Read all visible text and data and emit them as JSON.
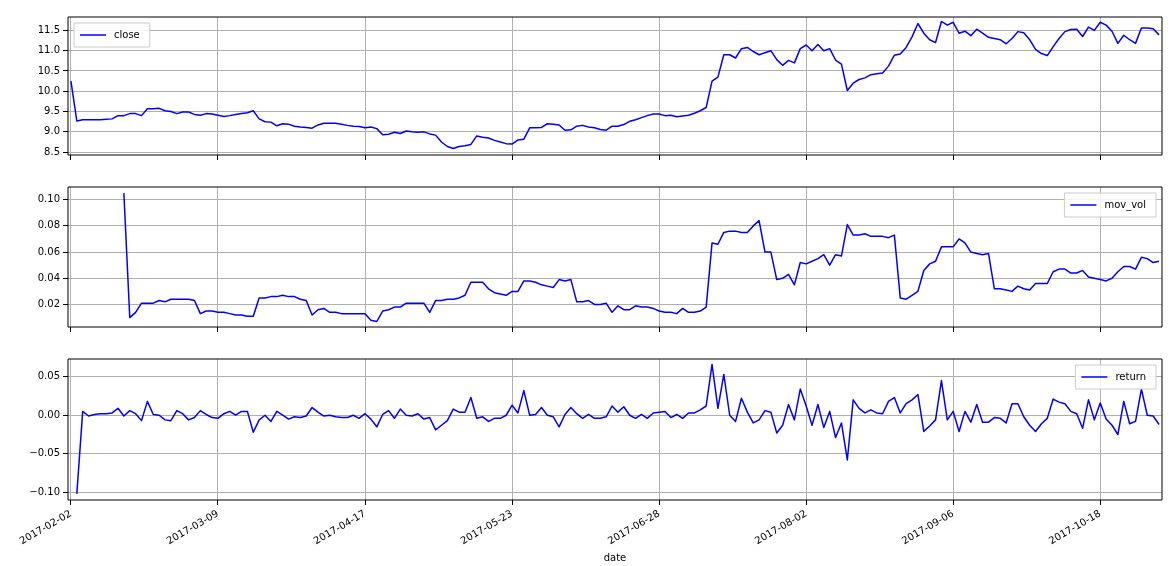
{
  "chart_data": [
    {
      "type": "line",
      "legend": "top left",
      "grid": true,
      "tick_labels": "y",
      "ylim": [
        8.43,
        11.83
      ],
      "categories": [
        "2017-02-02",
        null,
        null,
        null,
        null,
        null,
        null,
        null,
        null,
        null,
        null,
        null,
        null,
        null,
        null,
        null,
        null,
        null,
        null,
        null,
        null,
        null,
        null,
        null,
        null,
        "2017-03-09",
        null,
        null,
        null,
        null,
        null,
        null,
        null,
        null,
        null,
        null,
        null,
        null,
        null,
        null,
        null,
        null,
        null,
        null,
        null,
        null,
        null,
        null,
        null,
        null,
        "2017-04-17",
        null,
        null,
        null,
        null,
        null,
        null,
        null,
        null,
        null,
        null,
        null,
        null,
        null,
        null,
        null,
        null,
        null,
        null,
        null,
        null,
        null,
        null,
        null,
        null,
        "2017-05-23",
        null,
        null,
        null,
        null,
        null,
        null,
        null,
        null,
        null,
        null,
        null,
        null,
        null,
        null,
        null,
        null,
        null,
        null,
        null,
        null,
        null,
        null,
        null,
        null,
        "2017-06-28",
        null,
        null,
        null,
        null,
        null,
        null,
        null,
        null,
        null,
        null,
        null,
        null,
        null,
        null,
        null,
        null,
        null,
        null,
        null,
        null,
        null,
        null,
        null,
        null,
        "2017-08-02",
        null,
        null,
        null,
        null,
        null,
        null,
        null,
        null,
        null,
        null,
        null,
        null,
        null,
        null,
        null,
        null,
        null,
        null,
        null,
        null,
        null,
        null,
        null,
        null,
        "2017-09-06",
        null,
        null,
        null,
        null,
        null,
        null,
        null,
        null,
        null,
        null,
        null,
        null,
        null,
        null,
        null,
        null,
        null,
        null,
        null,
        null,
        null,
        null,
        null,
        null,
        "2017-10-18",
        null,
        null,
        null,
        null,
        null,
        null,
        null,
        null,
        null,
        null
      ],
      "yticks": [
        8.5,
        {
          "value": 9,
          "label": "9.0"
        },
        9.5,
        {
          "value": 10,
          "label": "10.0"
        },
        10.5,
        {
          "value": 11,
          "label": "11.0"
        },
        11.5
      ],
      "series": [
        {
          "name": "close",
          "color": "#0000ff",
          "values": [
            10.25,
            9.27,
            9.3,
            9.3,
            9.3,
            9.3,
            9.31,
            9.32,
            9.4,
            9.4,
            9.45,
            9.45,
            9.4,
            9.57,
            9.57,
            9.58,
            9.52,
            9.5,
            9.45,
            9.49,
            9.49,
            9.43,
            9.41,
            9.45,
            9.44,
            9.41,
            9.38,
            9.4,
            9.43,
            9.45,
            9.47,
            9.52,
            9.32,
            9.25,
            9.24,
            9.15,
            9.2,
            9.19,
            9.14,
            9.12,
            9.11,
            9.09,
            9.17,
            9.21,
            9.21,
            9.21,
            9.19,
            9.16,
            9.14,
            9.13,
            9.1,
            9.12,
            9.08,
            8.93,
            8.94,
            8.99,
            8.96,
            9.02,
            9.0,
            8.99,
            9.0,
            8.95,
            8.92,
            8.75,
            8.64,
            8.59,
            8.64,
            8.66,
            8.69,
            8.9,
            8.87,
            8.85,
            8.79,
            8.75,
            8.71,
            8.7,
            8.8,
            8.82,
            9.1,
            9.1,
            9.11,
            9.2,
            9.19,
            9.17,
            9.04,
            9.05,
            9.14,
            9.16,
            9.12,
            9.1,
            9.06,
            9.04,
            9.14,
            9.14,
            9.18,
            9.26,
            9.3,
            9.35,
            9.4,
            9.44,
            9.44,
            9.4,
            9.41,
            9.37,
            9.39,
            9.41,
            9.46,
            9.52,
            9.6,
            10.25,
            10.35,
            10.9,
            10.9,
            10.82,
            11.05,
            11.08,
            10.98,
            10.9,
            10.95,
            11.0,
            10.78,
            10.64,
            10.76,
            10.7,
            11.05,
            11.14,
            11.0,
            11.15,
            11.0,
            11.05,
            10.77,
            10.67,
            10.02,
            10.2,
            10.29,
            10.33,
            10.41,
            10.43,
            10.45,
            10.62,
            10.89,
            10.92,
            11.08,
            11.34,
            11.67,
            11.43,
            11.27,
            11.2,
            11.72,
            11.63,
            11.7,
            11.43,
            11.48,
            11.37,
            11.53,
            11.43,
            11.33,
            11.3,
            11.27,
            11.17,
            11.3,
            11.47,
            11.44,
            11.27,
            11.03,
            10.93,
            10.88,
            11.1,
            11.3,
            11.47,
            11.52,
            11.53,
            11.35,
            11.58,
            11.5,
            11.7,
            11.63,
            11.48,
            11.18,
            11.38,
            11.27,
            11.18,
            11.56,
            11.56,
            11.54,
            11.39
          ]
        }
      ]
    },
    {
      "type": "line",
      "legend": "top right",
      "grid": true,
      "tick_labels": "y",
      "ylim": [
        0.0028,
        0.1097
      ],
      "categories": [
        "2017-02-02",
        null,
        null,
        null,
        null,
        null,
        null,
        null,
        null,
        null,
        null,
        null,
        null,
        null,
        null,
        null,
        null,
        null,
        null,
        null,
        null,
        null,
        null,
        null,
        null,
        "2017-03-09",
        null,
        null,
        null,
        null,
        null,
        null,
        null,
        null,
        null,
        null,
        null,
        null,
        null,
        null,
        null,
        null,
        null,
        null,
        null,
        null,
        null,
        null,
        null,
        null,
        "2017-04-17",
        null,
        null,
        null,
        null,
        null,
        null,
        null,
        null,
        null,
        null,
        null,
        null,
        null,
        null,
        null,
        null,
        null,
        null,
        null,
        null,
        null,
        null,
        null,
        null,
        "2017-05-23",
        null,
        null,
        null,
        null,
        null,
        null,
        null,
        null,
        null,
        null,
        null,
        null,
        null,
        null,
        null,
        null,
        null,
        null,
        null,
        null,
        null,
        null,
        null,
        null,
        "2017-06-28",
        null,
        null,
        null,
        null,
        null,
        null,
        null,
        null,
        null,
        null,
        null,
        null,
        null,
        null,
        null,
        null,
        null,
        null,
        null,
        null,
        null,
        null,
        null,
        null,
        "2017-08-02",
        null,
        null,
        null,
        null,
        null,
        null,
        null,
        null,
        null,
        null,
        null,
        null,
        null,
        null,
        null,
        null,
        null,
        null,
        null,
        null,
        null,
        null,
        null,
        null,
        "2017-09-06",
        null,
        null,
        null,
        null,
        null,
        null,
        null,
        null,
        null,
        null,
        null,
        null,
        null,
        null,
        null,
        null,
        null,
        null,
        null,
        null,
        null,
        null,
        null,
        null,
        "2017-10-18",
        null,
        null,
        null,
        null,
        null,
        null,
        null,
        null,
        null,
        null
      ],
      "yticks": [
        0.02,
        0.04,
        0.06,
        0.08,
        {
          "value": 0.1,
          "label": "0.10"
        }
      ],
      "series": [
        {
          "name": "mov_vol",
          "color": "#0000ff",
          "values": [
            null,
            null,
            null,
            null,
            null,
            null,
            null,
            null,
            null,
            0.105,
            0.01,
            0.014,
            0.021,
            0.021,
            0.021,
            0.023,
            0.022,
            0.024,
            0.024,
            0.024,
            0.024,
            0.023,
            0.013,
            0.015,
            0.015,
            0.014,
            0.014,
            0.013,
            0.012,
            0.012,
            0.011,
            0.011,
            0.025,
            0.025,
            0.026,
            0.026,
            0.027,
            0.026,
            0.026,
            0.024,
            0.023,
            0.012,
            0.016,
            0.017,
            0.014,
            0.014,
            0.013,
            0.013,
            0.013,
            0.013,
            0.013,
            0.008,
            0.007,
            0.015,
            0.016,
            0.018,
            0.018,
            0.021,
            0.021,
            0.021,
            0.021,
            0.014,
            0.023,
            0.023,
            0.024,
            0.024,
            0.025,
            0.027,
            0.037,
            0.037,
            0.037,
            0.032,
            0.029,
            0.028,
            0.027,
            0.03,
            0.03,
            0.038,
            0.038,
            0.037,
            0.035,
            0.034,
            0.033,
            0.039,
            0.038,
            0.039,
            0.022,
            0.022,
            0.023,
            0.02,
            0.02,
            0.021,
            0.014,
            0.019,
            0.016,
            0.016,
            0.019,
            0.018,
            0.018,
            0.017,
            0.015,
            0.014,
            0.014,
            0.013,
            0.017,
            0.014,
            0.014,
            0.015,
            0.018,
            0.067,
            0.066,
            0.075,
            0.076,
            0.076,
            0.075,
            0.075,
            0.08,
            0.084,
            0.06,
            0.06,
            0.039,
            0.04,
            0.043,
            0.035,
            0.052,
            0.051,
            0.053,
            0.055,
            0.058,
            0.05,
            0.058,
            0.057,
            0.081,
            0.073,
            0.073,
            0.074,
            0.072,
            0.072,
            0.072,
            0.071,
            0.073,
            0.025,
            0.024,
            0.027,
            0.03,
            0.046,
            0.051,
            0.053,
            0.064,
            0.064,
            0.064,
            0.07,
            0.067,
            0.06,
            0.059,
            0.058,
            0.059,
            0.032,
            0.032,
            0.031,
            0.03,
            0.034,
            0.032,
            0.031,
            0.036,
            0.036,
            0.036,
            0.045,
            0.047,
            0.047,
            0.044,
            0.044,
            0.046,
            0.041,
            0.04,
            0.039,
            0.038,
            0.04,
            0.045,
            0.049,
            0.049,
            0.047,
            0.056,
            0.055,
            0.052,
            0.053
          ]
        }
      ]
    },
    {
      "type": "line",
      "legend": "top right",
      "grid": true,
      "xlabel": "date",
      "ylim": [
        -0.11,
        0.073
      ],
      "categories": [
        "2017-02-02",
        null,
        null,
        null,
        null,
        null,
        null,
        null,
        null,
        null,
        null,
        null,
        null,
        null,
        null,
        null,
        null,
        null,
        null,
        null,
        null,
        null,
        null,
        null,
        null,
        "2017-03-09",
        null,
        null,
        null,
        null,
        null,
        null,
        null,
        null,
        null,
        null,
        null,
        null,
        null,
        null,
        null,
        null,
        null,
        null,
        null,
        null,
        null,
        null,
        null,
        null,
        "2017-04-17",
        null,
        null,
        null,
        null,
        null,
        null,
        null,
        null,
        null,
        null,
        null,
        null,
        null,
        null,
        null,
        null,
        null,
        null,
        null,
        null,
        null,
        null,
        null,
        null,
        "2017-05-23",
        null,
        null,
        null,
        null,
        null,
        null,
        null,
        null,
        null,
        null,
        null,
        null,
        null,
        null,
        null,
        null,
        null,
        null,
        null,
        null,
        null,
        null,
        null,
        null,
        "2017-06-28",
        null,
        null,
        null,
        null,
        null,
        null,
        null,
        null,
        null,
        null,
        null,
        null,
        null,
        null,
        null,
        null,
        null,
        null,
        null,
        null,
        null,
        null,
        null,
        null,
        "2017-08-02",
        null,
        null,
        null,
        null,
        null,
        null,
        null,
        null,
        null,
        null,
        null,
        null,
        null,
        null,
        null,
        null,
        null,
        null,
        null,
        null,
        null,
        null,
        null,
        null,
        "2017-09-06",
        null,
        null,
        null,
        null,
        null,
        null,
        null,
        null,
        null,
        null,
        null,
        null,
        null,
        null,
        null,
        null,
        null,
        null,
        null,
        null,
        null,
        null,
        null,
        null,
        "2017-10-18",
        null,
        null,
        null,
        null,
        null,
        null,
        null,
        null,
        null,
        null
      ],
      "yticks": [
        {
          "value": -0.1,
          "label": "−0.10"
        },
        {
          "value": -0.05,
          "label": "−0.05"
        },
        {
          "value": 0,
          "label": "0.00"
        },
        0.05
      ],
      "series": [
        {
          "name": "return",
          "color": "#0000ff",
          "values": [
            null,
            -0.102,
            0.005,
            -0.001,
            0.001,
            0.002,
            0.002,
            0.003,
            0.009,
            -0.001,
            0.006,
            0.002,
            -0.007,
            0.018,
            0.001,
            0.0,
            -0.006,
            -0.007,
            0.006,
            0.002,
            -0.006,
            -0.003,
            0.006,
            0.001,
            -0.003,
            -0.004,
            0.002,
            0.005,
            0.0,
            0.005,
            0.005,
            -0.022,
            -0.006,
            0.0,
            -0.008,
            0.005,
            0.0,
            -0.005,
            -0.002,
            -0.003,
            -0.001,
            0.01,
            0.004,
            -0.001,
            0.0,
            -0.002,
            -0.003,
            -0.003,
            0.0,
            -0.004,
            0.002,
            -0.005,
            -0.015,
            0.001,
            0.006,
            -0.004,
            0.008,
            0.0,
            -0.001,
            0.002,
            -0.005,
            -0.003,
            -0.019,
            -0.013,
            -0.007,
            0.008,
            0.004,
            0.004,
            0.023,
            -0.004,
            -0.002,
            -0.008,
            -0.004,
            -0.004,
            0.0,
            0.013,
            0.003,
            0.032,
            0.0,
            0.001,
            0.01,
            0.0,
            -0.002,
            -0.015,
            0.001,
            0.01,
            0.002,
            -0.004,
            0.001,
            -0.004,
            -0.004,
            -0.002,
            0.012,
            0.004,
            0.011,
            0.0,
            -0.004,
            0.001,
            -0.004,
            0.003,
            0.004,
            0.005,
            -0.003,
            0.001,
            -0.004,
            0.003,
            0.003,
            0.007,
            0.012,
            0.066,
            0.009,
            0.053,
            0.0,
            -0.008,
            0.022,
            0.004,
            -0.01,
            -0.006,
            0.006,
            0.004,
            -0.023,
            -0.013,
            0.014,
            -0.006,
            0.034,
            0.012,
            -0.013,
            0.014,
            -0.016,
            0.005,
            -0.029,
            -0.01,
            -0.058,
            0.02,
            0.009,
            0.003,
            0.007,
            0.003,
            0.002,
            0.018,
            0.023,
            0.003,
            0.015,
            0.02,
            0.027,
            -0.021,
            -0.014,
            -0.006,
            0.045,
            -0.006,
            0.005,
            -0.021,
            0.005,
            -0.009,
            0.014,
            -0.009,
            -0.009,
            -0.003,
            -0.004,
            -0.01,
            0.015,
            0.015,
            -0.002,
            -0.013,
            -0.021,
            -0.011,
            -0.004,
            0.021,
            0.017,
            0.015,
            0.005,
            0.002,
            -0.017,
            0.02,
            -0.006,
            0.016,
            -0.005,
            -0.013,
            -0.025,
            0.018,
            -0.011,
            -0.008,
            0.034,
            0.0,
            -0.001,
            -0.012
          ]
        }
      ]
    }
  ]
}
